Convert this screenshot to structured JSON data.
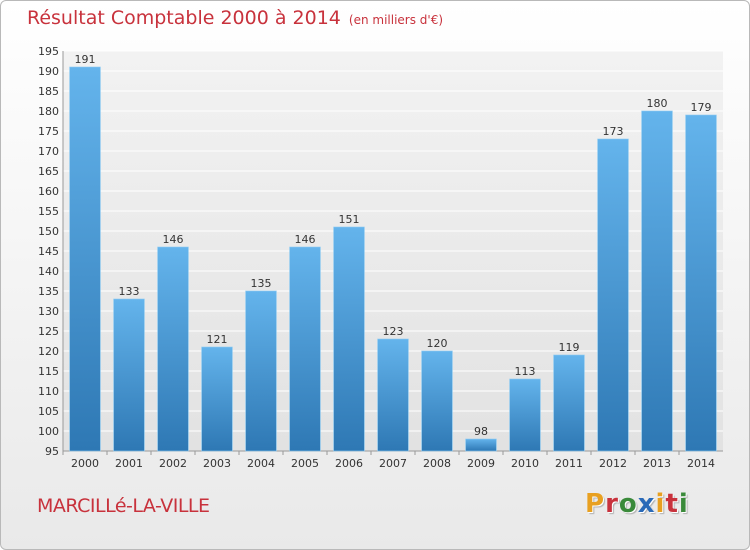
{
  "header": {
    "title": "Résultat Comptable 2000 à 2014",
    "unit": "(en milliers d'€)"
  },
  "footer": {
    "commune": "MARCILLé-LA-VILLE",
    "brand": "Proxiti"
  },
  "colors": {
    "title": "#c8323c",
    "bar_light": "#64b4ec",
    "bar_dark": "#2e78b4",
    "brand_letters": [
      "#e8a020",
      "#c8323c",
      "#3a8a3a",
      "#2a6ab8",
      "#e8a020",
      "#c8323c",
      "#3a8a3a"
    ]
  },
  "chart_data": {
    "type": "bar",
    "categories": [
      "2000",
      "2001",
      "2002",
      "2003",
      "2004",
      "2005",
      "2006",
      "2007",
      "2008",
      "2009",
      "2010",
      "2011",
      "2012",
      "2013",
      "2014"
    ],
    "values": [
      191,
      133,
      146,
      121,
      135,
      146,
      151,
      123,
      120,
      98,
      113,
      119,
      173,
      180,
      179
    ],
    "ylim": [
      95,
      195
    ],
    "yticks": [
      95,
      100,
      105,
      110,
      115,
      120,
      125,
      130,
      135,
      140,
      145,
      150,
      155,
      160,
      165,
      170,
      175,
      180,
      185,
      190,
      195
    ],
    "grid": true,
    "data_labels": true
  }
}
